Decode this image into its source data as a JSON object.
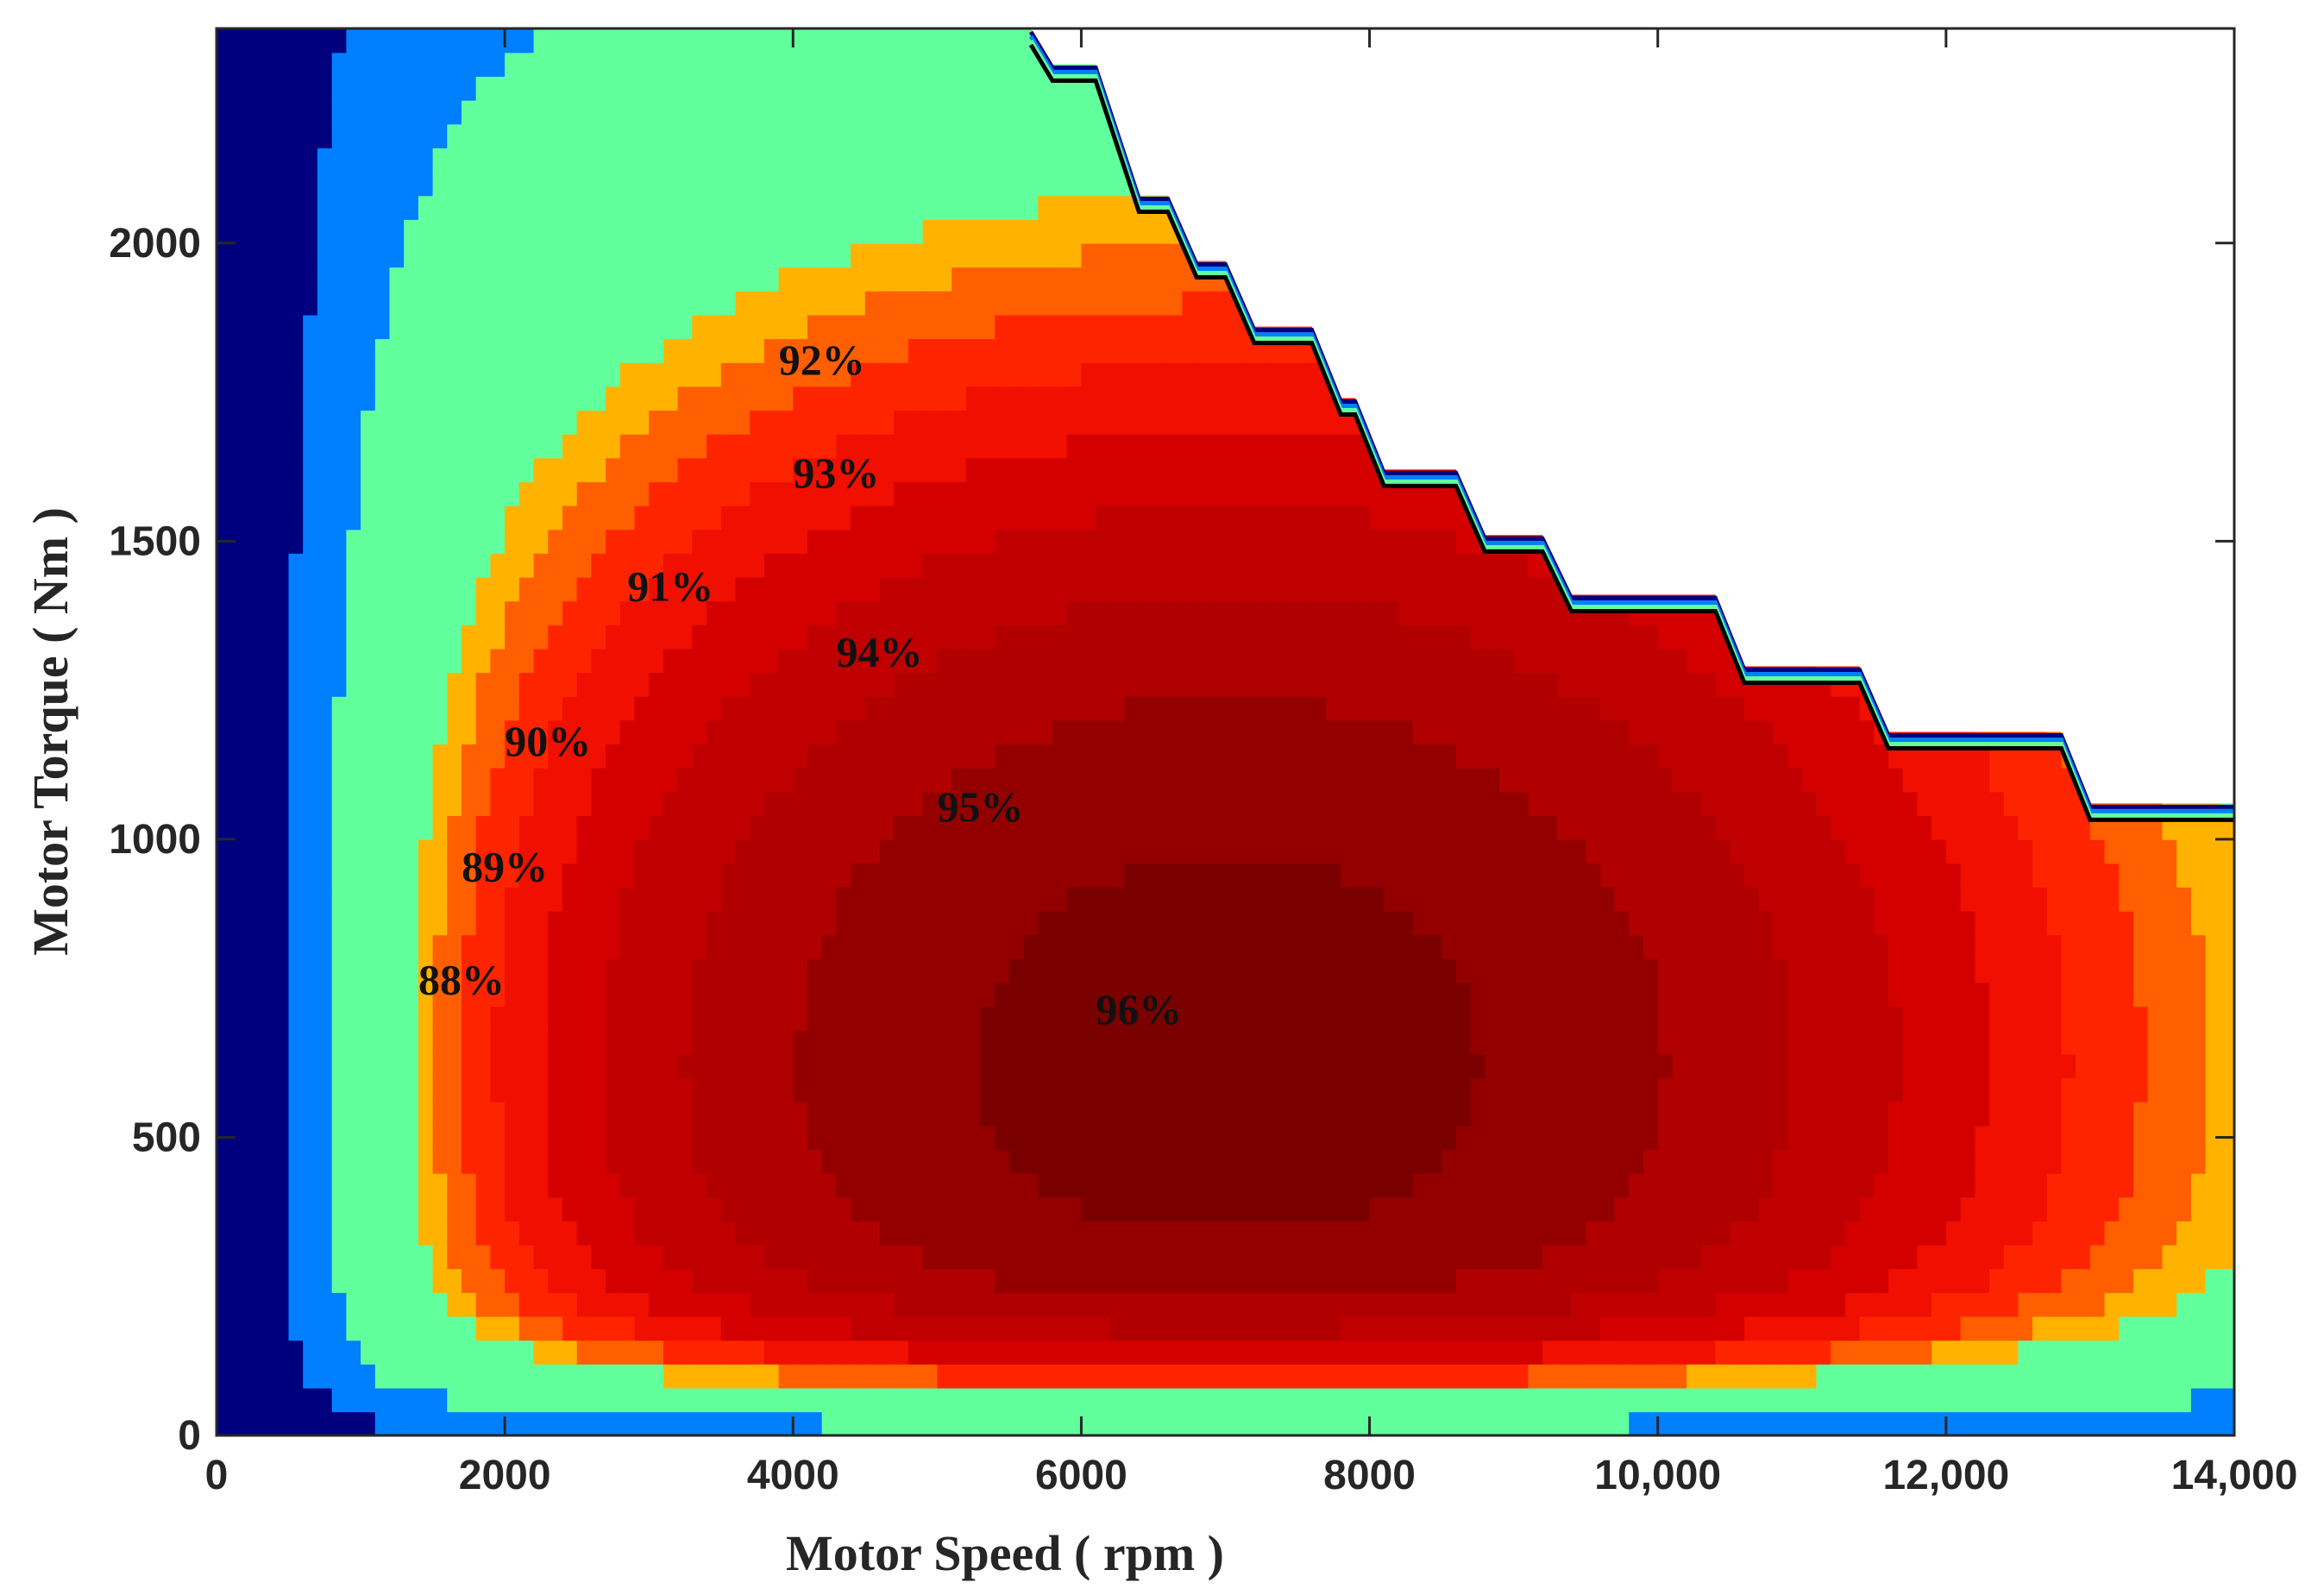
{
  "chart_data": {
    "type": "contourf",
    "title": "",
    "xlabel": "Motor Speed ( rpm )",
    "ylabel": "Motor Torque ( Nm )",
    "xlim": [
      0,
      14000
    ],
    "ylim": [
      0,
      2360
    ],
    "xticks": [
      0,
      2000,
      4000,
      6000,
      8000,
      10000,
      12000,
      14000
    ],
    "xtick_labels": [
      "0",
      "2000",
      "4000",
      "6000",
      "8000",
      "10,000",
      "12,000",
      "14,000"
    ],
    "yticks": [
      0,
      500,
      1000,
      1500,
      2000
    ],
    "ytick_labels": [
      "0",
      "500",
      "1000",
      "1500",
      "2000"
    ],
    "grid": false,
    "max_torque_envelope": [
      [
        5650,
        2360
      ],
      [
        5800,
        2300
      ],
      [
        6100,
        2300
      ],
      [
        6400,
        2080
      ],
      [
        6600,
        2080
      ],
      [
        6800,
        1970
      ],
      [
        7000,
        1970
      ],
      [
        7200,
        1860
      ],
      [
        7600,
        1860
      ],
      [
        7800,
        1740
      ],
      [
        7900,
        1740
      ],
      [
        8100,
        1620
      ],
      [
        8600,
        1620
      ],
      [
        8800,
        1510
      ],
      [
        9200,
        1510
      ],
      [
        9400,
        1410
      ],
      [
        10400,
        1410
      ],
      [
        10600,
        1290
      ],
      [
        11400,
        1290
      ],
      [
        11600,
        1180
      ],
      [
        12800,
        1180
      ],
      [
        13000,
        1060
      ],
      [
        14000,
        1060
      ]
    ],
    "levels": [
      {
        "label": "",
        "value": 0.6,
        "color": "#00007F"
      },
      {
        "label": "",
        "value": 0.7,
        "color": "#0080FF"
      },
      {
        "label": "",
        "value": 0.8,
        "color": "#62FF9D"
      },
      {
        "label": "88%",
        "value": 0.88,
        "color": "#FFB300"
      },
      {
        "label": "89%",
        "value": 0.89,
        "color": "#FF5F00"
      },
      {
        "label": "90%",
        "value": 0.9,
        "color": "#FF2400"
      },
      {
        "label": "91%",
        "value": 0.91,
        "color": "#F00F00"
      },
      {
        "label": "92%",
        "value": 0.92,
        "color": "#D40000"
      },
      {
        "label": "93%",
        "value": 0.93,
        "color": "#C00000"
      },
      {
        "label": "94%",
        "value": 0.94,
        "color": "#B00000"
      },
      {
        "label": "95%",
        "value": 0.95,
        "color": "#940000"
      },
      {
        "label": "96%",
        "value": 0.96,
        "color": "#7A0000"
      }
    ],
    "contour_labels": [
      {
        "text": "88%",
        "x": 1700,
        "y": 740
      },
      {
        "text": "89%",
        "x": 2000,
        "y": 930
      },
      {
        "text": "90%",
        "x": 2300,
        "y": 1140
      },
      {
        "text": "91%",
        "x": 3150,
        "y": 1400
      },
      {
        "text": "92%",
        "x": 4200,
        "y": 1780
      },
      {
        "text": "93%",
        "x": 4300,
        "y": 1590
      },
      {
        "text": "94%",
        "x": 4600,
        "y": 1290
      },
      {
        "text": "95%",
        "x": 5300,
        "y": 1030
      },
      {
        "text": "96%",
        "x": 6400,
        "y": 690
      }
    ]
  }
}
